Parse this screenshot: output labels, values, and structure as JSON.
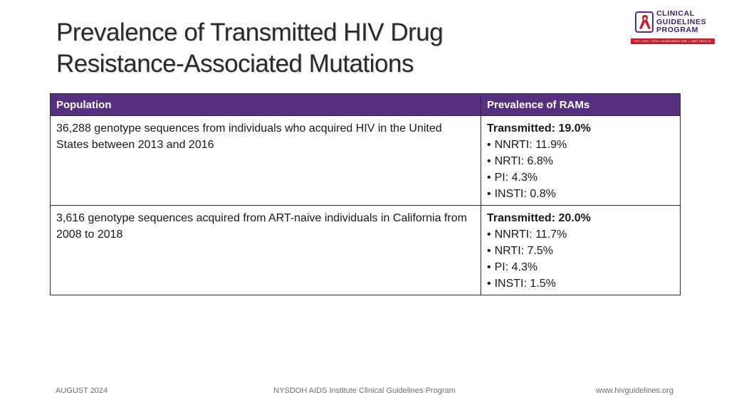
{
  "slide": {
    "title_line1": "Prevalence of Transmitted HIV Drug",
    "title_line2": "Resistance-Associated Mutations"
  },
  "logo": {
    "line1": "CLINICAL",
    "line2": "GUIDELINES",
    "line3": "PROGRAM",
    "tagline": "HIV • HCV • STIs • SUBSTANCE USE • LGBT HEALTH",
    "brand_purple": "#3b1f6b",
    "brand_red": "#c8202f"
  },
  "table": {
    "header_color": "#583080",
    "headers": [
      "Population",
      "Prevalence of RAMs"
    ],
    "rows": [
      {
        "population": "36,288 genotype sequences from individuals who acquired HIV in the United States between 2013 and 2016",
        "transmitted": "Transmitted: 19.0%",
        "bullets": [
          "NNRTI: 11.9%",
          "NRTI: 6.8%",
          "PI: 4.3%",
          "INSTI: 0.8%"
        ]
      },
      {
        "population": "3,616 genotype sequences acquired from ART-naive individuals in California from 2008 to 2018",
        "transmitted": "Transmitted: 20.0%",
        "bullets": [
          "NNRTI: 11.7%",
          "NRTI: 7.5%",
          "PI: 4.3%",
          "INSTI: 1.5%"
        ]
      }
    ]
  },
  "footer": {
    "date": "AUGUST 2024",
    "org": "NYSDOH AIDS Institute Clinical Guidelines Program",
    "url": "www.hivguidelines.org"
  }
}
